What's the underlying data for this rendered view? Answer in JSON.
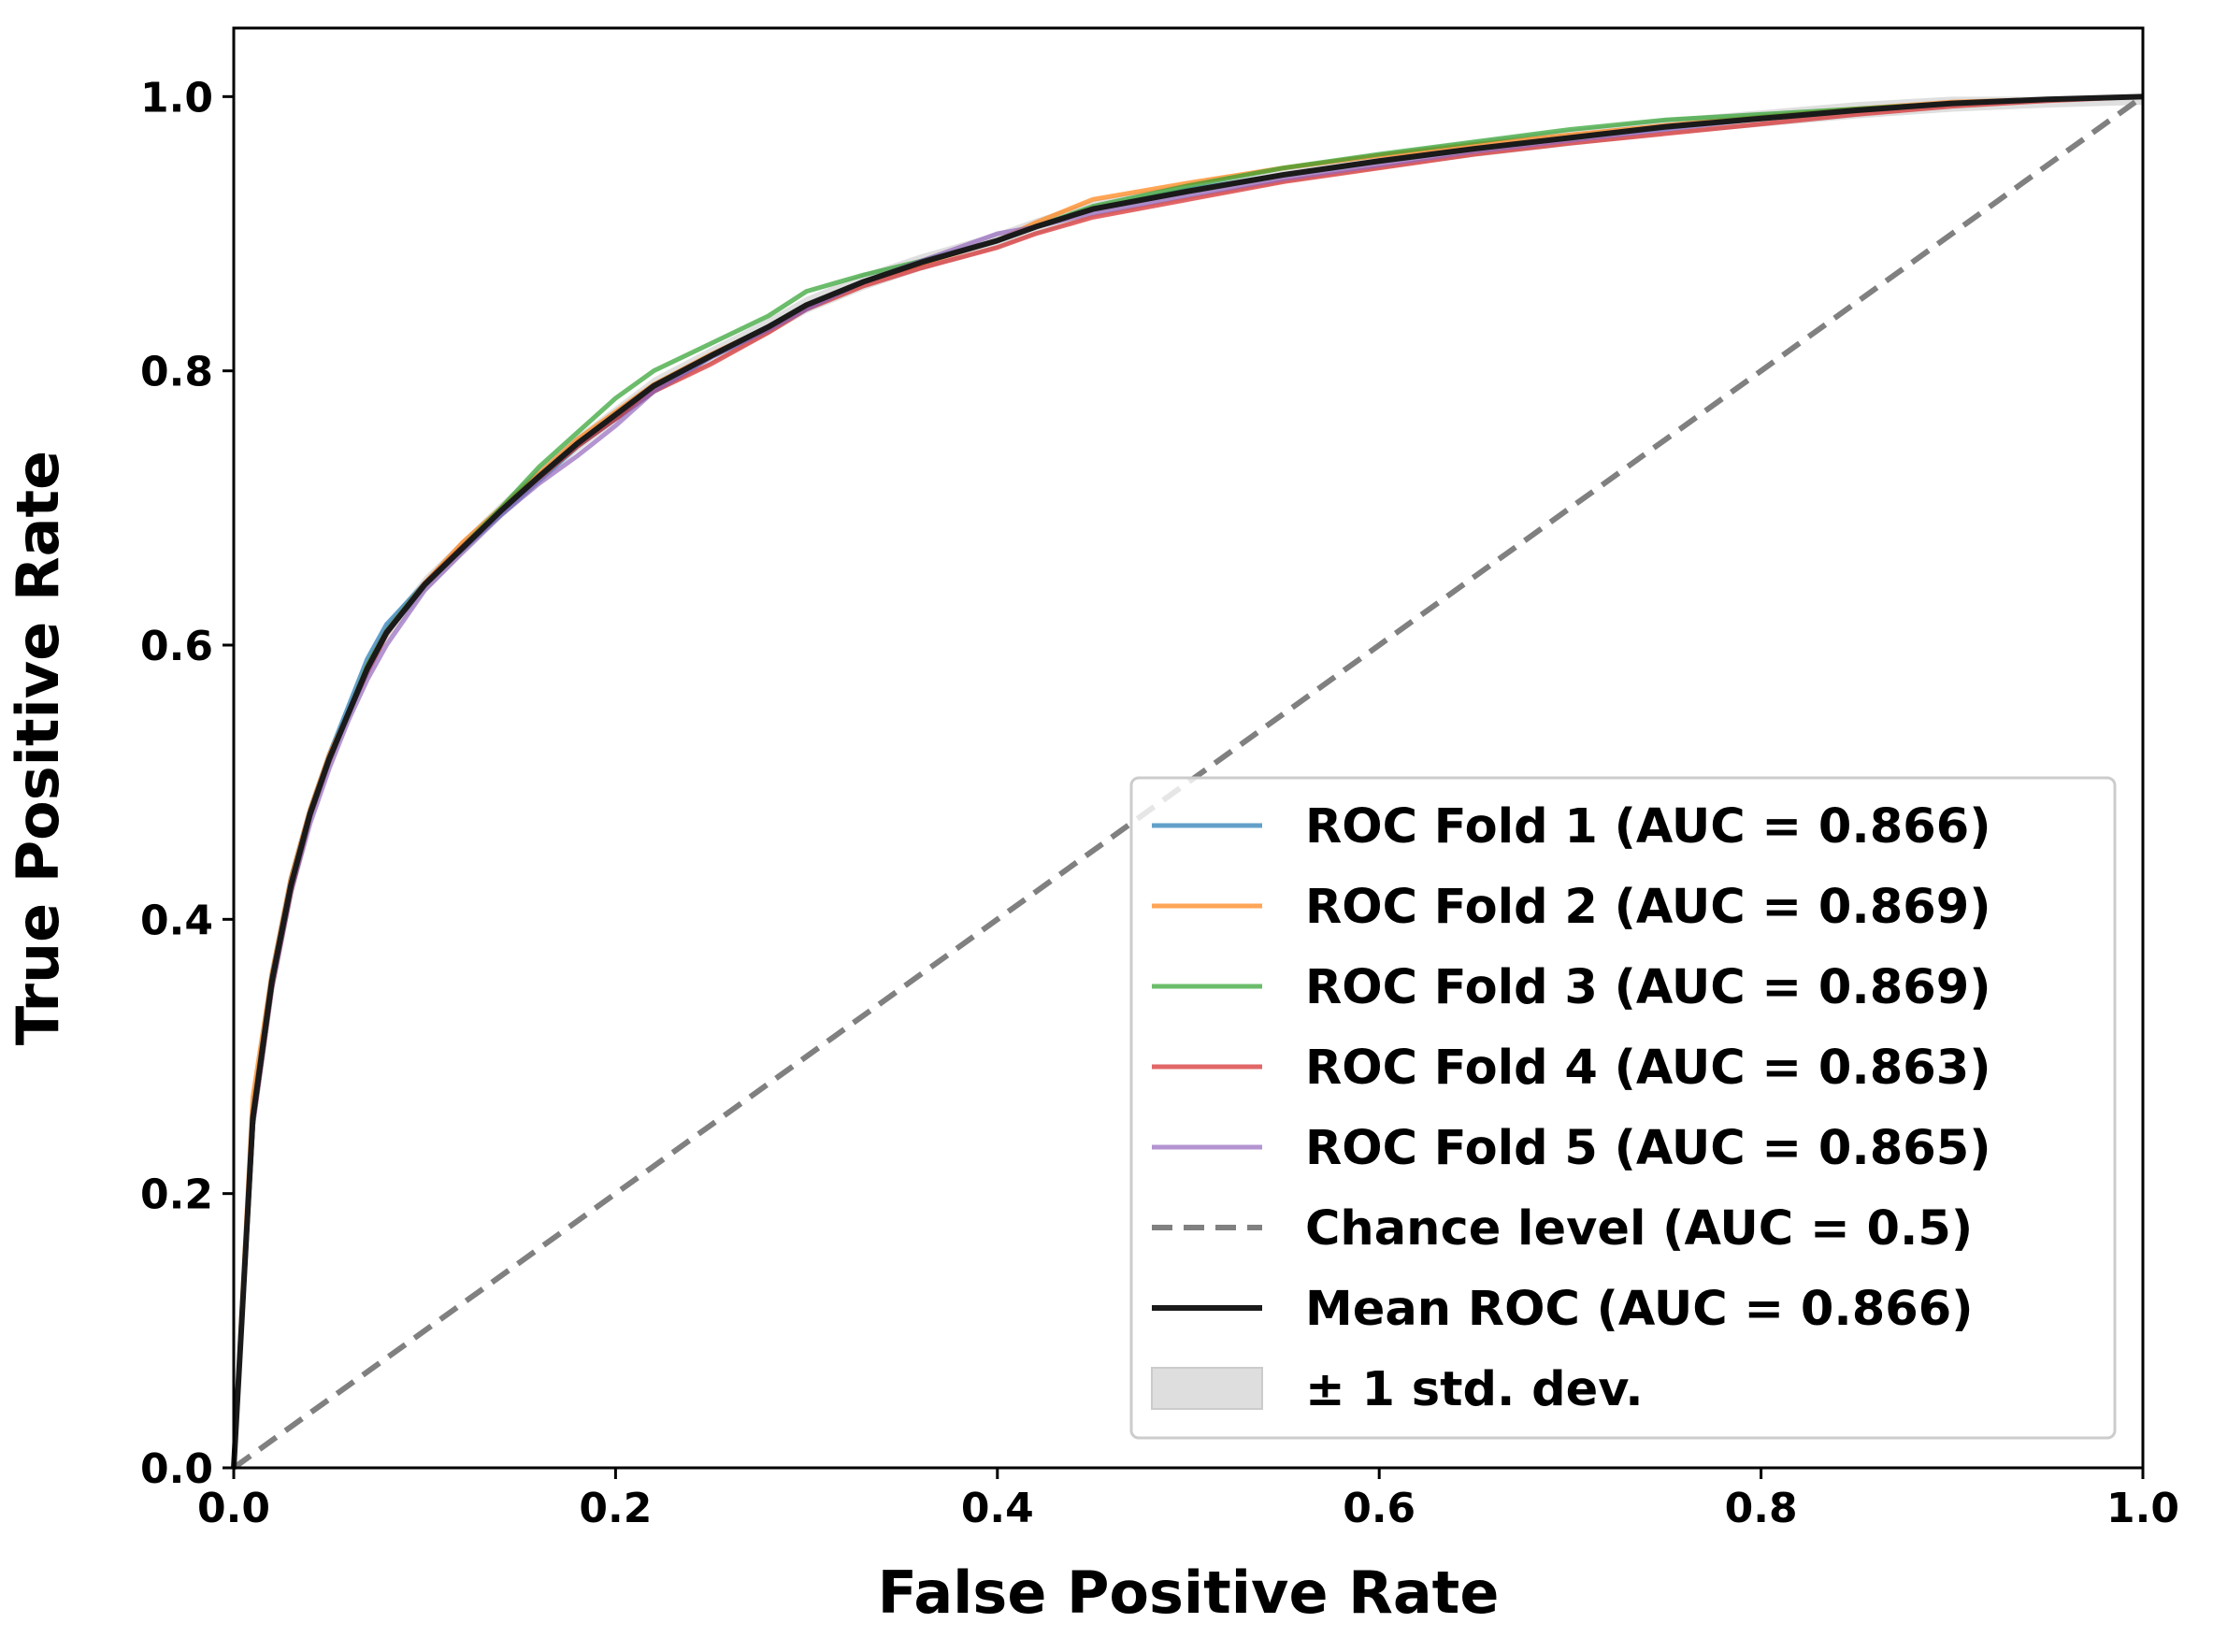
{
  "chart_data": {
    "type": "line",
    "title": "",
    "xlabel": "False Positive Rate",
    "ylabel": "True Positive Rate",
    "xlim": [
      0.0,
      1.0
    ],
    "ylim": [
      0.0,
      1.05
    ],
    "xticks": [
      "0.0",
      "0.2",
      "0.4",
      "0.6",
      "0.8",
      "1.0"
    ],
    "yticks": [
      "0.0",
      "0.2",
      "0.4",
      "0.6",
      "0.8",
      "1.0"
    ],
    "grid": false,
    "legend_position": "lower-right",
    "x": [
      0.0,
      0.01,
      0.02,
      0.03,
      0.04,
      0.05,
      0.06,
      0.07,
      0.08,
      0.1,
      0.12,
      0.14,
      0.16,
      0.18,
      0.2,
      0.22,
      0.25,
      0.28,
      0.3,
      0.33,
      0.36,
      0.4,
      0.42,
      0.45,
      0.5,
      0.55,
      0.6,
      0.65,
      0.7,
      0.75,
      0.8,
      0.85,
      0.9,
      0.95,
      1.0
    ],
    "series": [
      {
        "name": "ROC Fold 1 (AUC = 0.866)",
        "color": "#1f77b4",
        "values": [
          0.0,
          0.26,
          0.36,
          0.43,
          0.48,
          0.52,
          0.555,
          0.59,
          0.615,
          0.645,
          0.67,
          0.695,
          0.72,
          0.745,
          0.765,
          0.785,
          0.81,
          0.83,
          0.845,
          0.865,
          0.88,
          0.895,
          0.905,
          0.918,
          0.932,
          0.943,
          0.953,
          0.962,
          0.97,
          0.977,
          0.985,
          0.99,
          0.995,
          0.998,
          1.0
        ]
      },
      {
        "name": "ROC Fold 2 (AUC = 0.869)",
        "color": "#ff7f0e",
        "values": [
          0.0,
          0.27,
          0.36,
          0.43,
          0.48,
          0.52,
          0.55,
          0.585,
          0.61,
          0.645,
          0.675,
          0.7,
          0.725,
          0.75,
          0.77,
          0.79,
          0.812,
          0.832,
          0.848,
          0.865,
          0.878,
          0.895,
          0.908,
          0.925,
          0.937,
          0.948,
          0.957,
          0.965,
          0.972,
          0.979,
          0.985,
          0.991,
          0.996,
          0.998,
          1.0
        ]
      },
      {
        "name": "ROC Fold 3 (AUC = 0.869)",
        "color": "#2ca02c",
        "values": [
          0.0,
          0.25,
          0.35,
          0.42,
          0.475,
          0.515,
          0.55,
          0.585,
          0.61,
          0.645,
          0.672,
          0.7,
          0.73,
          0.755,
          0.78,
          0.8,
          0.82,
          0.84,
          0.858,
          0.87,
          0.88,
          0.895,
          0.905,
          0.92,
          0.935,
          0.948,
          0.958,
          0.967,
          0.976,
          0.983,
          0.987,
          0.991,
          0.995,
          0.998,
          1.0
        ]
      },
      {
        "name": "ROC Fold 4 (AUC = 0.863)",
        "color": "#d62728",
        "values": [
          0.0,
          0.25,
          0.35,
          0.42,
          0.475,
          0.515,
          0.55,
          0.58,
          0.608,
          0.645,
          0.672,
          0.698,
          0.722,
          0.745,
          0.765,
          0.785,
          0.805,
          0.828,
          0.845,
          0.862,
          0.875,
          0.89,
          0.9,
          0.912,
          0.925,
          0.938,
          0.948,
          0.958,
          0.966,
          0.973,
          0.98,
          0.987,
          0.993,
          0.997,
          1.0
        ]
      },
      {
        "name": "ROC Fold 5 (AUC = 0.865)",
        "color": "#9467bd",
        "values": [
          0.0,
          0.25,
          0.35,
          0.42,
          0.47,
          0.51,
          0.545,
          0.575,
          0.6,
          0.64,
          0.668,
          0.695,
          0.718,
          0.738,
          0.76,
          0.785,
          0.81,
          0.83,
          0.845,
          0.865,
          0.88,
          0.9,
          0.905,
          0.915,
          0.928,
          0.94,
          0.95,
          0.96,
          0.968,
          0.976,
          0.984,
          0.99,
          0.995,
          0.998,
          1.0
        ]
      },
      {
        "name": "Chance level (AUC = 0.5)",
        "color": "#808080",
        "dashed": true,
        "x": [
          0.0,
          1.0
        ],
        "values": [
          0.0,
          1.0
        ]
      },
      {
        "name": "Mean ROC (AUC = 0.866)",
        "color": "#1a1a1a",
        "values": [
          0.0,
          0.255,
          0.355,
          0.425,
          0.477,
          0.517,
          0.55,
          0.583,
          0.609,
          0.644,
          0.671,
          0.698,
          0.723,
          0.747,
          0.768,
          0.789,
          0.811,
          0.832,
          0.848,
          0.865,
          0.879,
          0.895,
          0.905,
          0.918,
          0.931,
          0.943,
          0.953,
          0.962,
          0.97,
          0.978,
          0.984,
          0.99,
          0.995,
          0.998,
          1.0
        ]
      }
    ],
    "band": {
      "name": "± 1 std. dev.",
      "color": "#bfbfbf",
      "std": 0.006
    }
  }
}
